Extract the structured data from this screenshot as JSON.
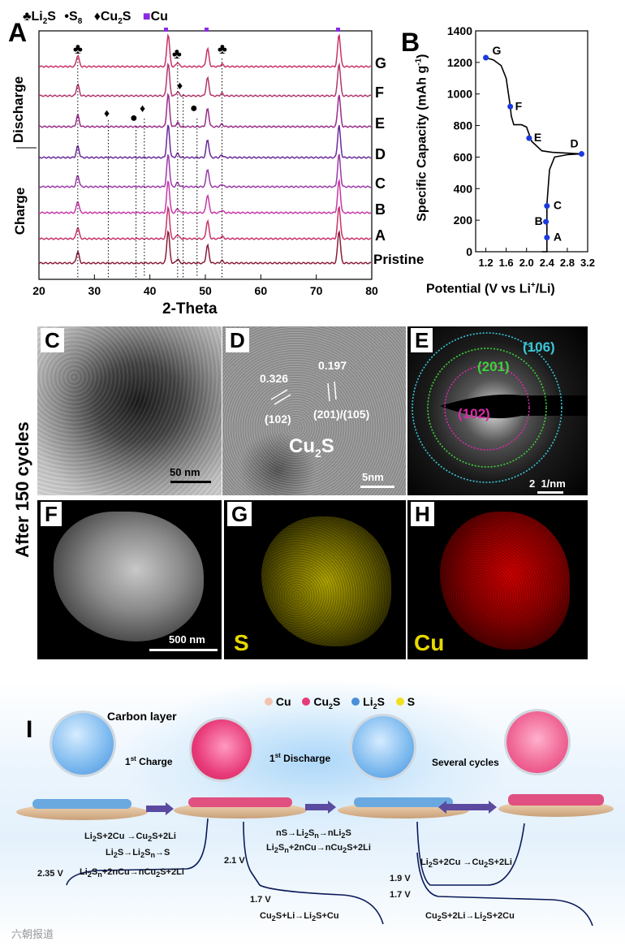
{
  "panelA": {
    "letter": "A",
    "legend": {
      "li2s": "Li",
      "li2s_sub": "2",
      "li2s_end": "S",
      "s8": "S",
      "s8_sub": "8",
      "cu2s": "Cu",
      "cu2s_sub": "2",
      "cu2s_end": "S",
      "cu": "Cu"
    },
    "side_discharge": "Discharge",
    "side_charge": "Charge",
    "xlabel": "2-Theta",
    "xticks": [
      "20",
      "30",
      "40",
      "50",
      "60",
      "70",
      "80"
    ],
    "curve_labels": [
      "G",
      "F",
      "E",
      "D",
      "C",
      "B",
      "A",
      "Pristine"
    ]
  },
  "chart_data": {
    "type": "line",
    "xlabel": "Potential (V vs Li+/Li)",
    "ylabel": "Specific Capacity (mAh g-1)",
    "xlim": [
      1.0,
      3.2
    ],
    "ylim": [
      0,
      1400
    ],
    "xticks": [
      "1.2",
      "1.6",
      "2.0",
      "2.4",
      "2.8",
      "3.2"
    ],
    "yticks": [
      "0",
      "200",
      "400",
      "600",
      "800",
      "1000",
      "1200",
      "1400"
    ],
    "points": [
      {
        "label": "A",
        "x": 2.4,
        "y": 90
      },
      {
        "label": "B",
        "x": 2.38,
        "y": 190
      },
      {
        "label": "C",
        "x": 2.4,
        "y": 290
      },
      {
        "label": "D",
        "x": 3.08,
        "y": 620
      },
      {
        "label": "E",
        "x": 2.05,
        "y": 720
      },
      {
        "label": "F",
        "x": 1.68,
        "y": 920
      },
      {
        "label": "G",
        "x": 1.2,
        "y": 1230
      }
    ],
    "curve": [
      [
        2.3,
        0
      ],
      [
        2.4,
        0
      ],
      [
        2.4,
        100
      ],
      [
        2.4,
        300
      ],
      [
        2.45,
        520
      ],
      [
        2.55,
        600
      ],
      [
        2.8,
        615
      ],
      [
        3.08,
        620
      ],
      [
        2.8,
        625
      ],
      [
        2.5,
        630
      ],
      [
        2.3,
        640
      ],
      [
        2.1,
        700
      ],
      [
        2.0,
        790
      ],
      [
        1.9,
        805
      ],
      [
        1.75,
        805
      ],
      [
        1.7,
        860
      ],
      [
        1.68,
        920
      ],
      [
        1.6,
        1100
      ],
      [
        1.5,
        1180
      ],
      [
        1.35,
        1215
      ],
      [
        1.2,
        1230
      ]
    ]
  },
  "panelB": {
    "letter": "B",
    "ylabel_main": "Specific Capacity (mAh g",
    "ylabel_sup": "-1",
    "ylabel_end": ")",
    "xlabel_main": "Potential (V vs Li",
    "xlabel_sup": "+",
    "xlabel_end": "/Li)"
  },
  "panelC": {
    "letter": "C",
    "scale": "50 nm"
  },
  "panelD": {
    "letter": "D",
    "d1": "0.326",
    "d2": "0.197",
    "hkl1": "(102)",
    "hkl2": "(201)/(105)",
    "phase": "Cu",
    "phase_sub": "2",
    "phase_end": "S",
    "scale": "5nm"
  },
  "panelE": {
    "letter": "E",
    "ring1": "(106)",
    "ring2": "(201)",
    "ring3": "(102)",
    "scale": "2  1/nm",
    "colors": {
      "ring1": "#38c8d8",
      "ring2": "#3cd23c",
      "ring3": "#d82aa8"
    }
  },
  "side_label": "After 150 cycles",
  "panelF": {
    "letter": "F",
    "scale": "500 nm"
  },
  "panelG": {
    "letter": "G",
    "element": "S",
    "color": "#e8d800"
  },
  "panelH": {
    "letter": "H",
    "element": "Cu",
    "color": "#e8d800"
  },
  "panelI": {
    "letter": "I",
    "legend": [
      {
        "name": "Cu",
        "color": "#f2c4b0"
      },
      {
        "name": "Cu2S",
        "color": "#e83a78"
      },
      {
        "name": "Li2S",
        "color": "#4a90d9"
      },
      {
        "name": "S",
        "color": "#f0e020"
      }
    ],
    "carbon_layer": "Carbon layer",
    "first_charge": "1st Charge",
    "first_discharge": "1st Discharge",
    "several_cycles": "Several cycles",
    "eq1": "Li2S+2Cu →Cu2S+2Li",
    "eq2": "Li2S→Li2Sn→S",
    "eq3": "Li2Sn+2nCu→nCu2S+2Li",
    "eq4": "nS→Li2Sn→nLi2S",
    "eq5": "Li2Sn+2nCu→nCu2S+2Li",
    "eq6": "Cu2S+Li→Li2S+Cu",
    "eq7": "Li2S+2Cu →Cu2S+2Li",
    "eq8": "Cu2S+2Li→Li2S+2Cu",
    "v235": "2.35 V",
    "v21": "2.1 V",
    "v17a": "1.7 V",
    "v19": "1.9 V",
    "v17b": "1.7 V"
  },
  "watermark": "六朝报道"
}
